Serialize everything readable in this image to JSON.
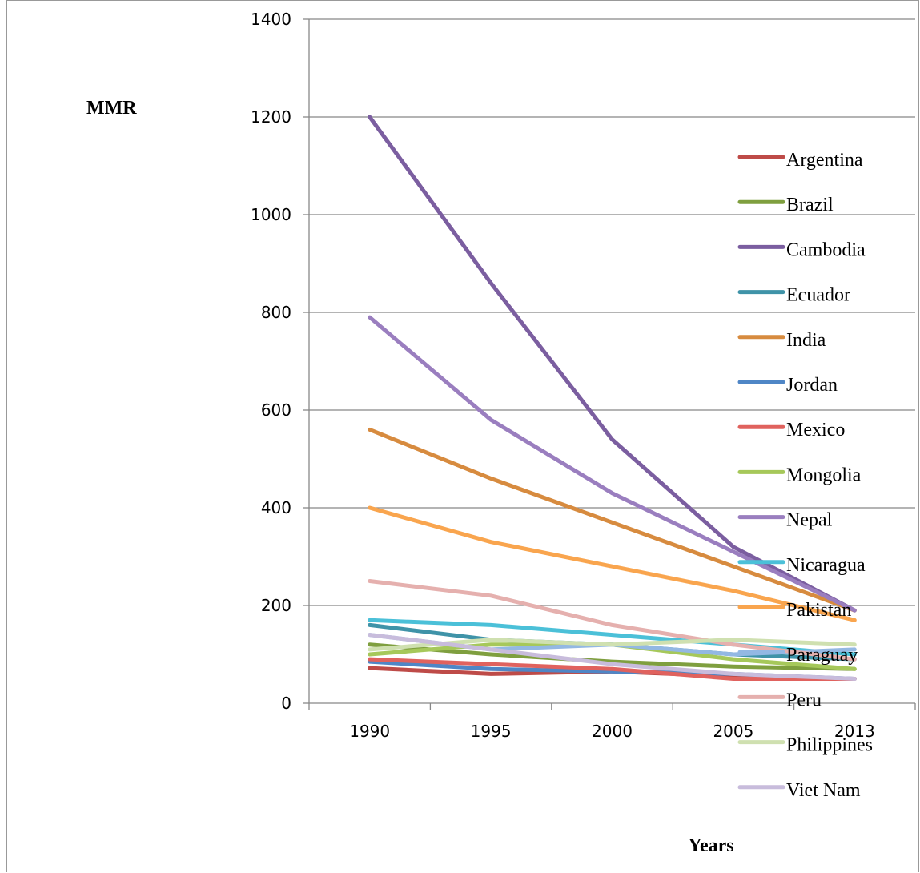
{
  "chart_data": {
    "type": "line",
    "title": "",
    "xlabel": "Years",
    "ylabel": "MMR",
    "ylim": [
      0,
      1400
    ],
    "yticks": [
      "0",
      "200",
      "400",
      "600",
      "800",
      "1000",
      "1200",
      "1400"
    ],
    "categories": [
      "1990",
      "1995",
      "2000",
      "2005",
      "2013"
    ],
    "grid": "horizontal",
    "legend_position": "right",
    "series": [
      {
        "name": "Argentina",
        "color": "#be4b48",
        "values": [
          72,
          60,
          65,
          55,
          50
        ]
      },
      {
        "name": "Brazil",
        "color": "#7f9f3f",
        "values": [
          120,
          100,
          85,
          75,
          70
        ]
      },
      {
        "name": "Cambodia",
        "color": "#7b5ea0",
        "values": [
          1200,
          860,
          540,
          320,
          190
        ]
      },
      {
        "name": "Ecuador",
        "color": "#3f93a8",
        "values": [
          160,
          130,
          120,
          100,
          90
        ]
      },
      {
        "name": "India",
        "color": "#d78b3f",
        "values": [
          560,
          460,
          370,
          280,
          190
        ]
      },
      {
        "name": "Jordan",
        "color": "#4f86c6",
        "values": [
          85,
          70,
          65,
          60,
          50
        ]
      },
      {
        "name": "Mexico",
        "color": "#e0625e",
        "values": [
          90,
          80,
          70,
          50,
          50
        ]
      },
      {
        "name": "Mongolia",
        "color": "#a6c85a",
        "values": [
          100,
          120,
          120,
          90,
          70
        ]
      },
      {
        "name": "Nepal",
        "color": "#9a7ebf",
        "values": [
          790,
          580,
          430,
          310,
          190
        ]
      },
      {
        "name": "Nicaragua",
        "color": "#4bc0d8",
        "values": [
          170,
          160,
          140,
          120,
          100
        ]
      },
      {
        "name": "Pakistan",
        "color": "#f9a54e",
        "values": [
          400,
          330,
          280,
          230,
          170
        ]
      },
      {
        "name": "Paraguay",
        "color": "#93b8e3",
        "values": [
          140,
          110,
          120,
          100,
          110
        ]
      },
      {
        "name": "Peru",
        "color": "#e5b0ae",
        "values": [
          250,
          220,
          160,
          120,
          90
        ]
      },
      {
        "name": "Philippines",
        "color": "#cfe0b0",
        "values": [
          110,
          130,
          120,
          130,
          120
        ]
      },
      {
        "name": "Viet Nam",
        "color": "#c8bcdc",
        "values": [
          140,
          110,
          80,
          60,
          50
        ]
      }
    ]
  }
}
